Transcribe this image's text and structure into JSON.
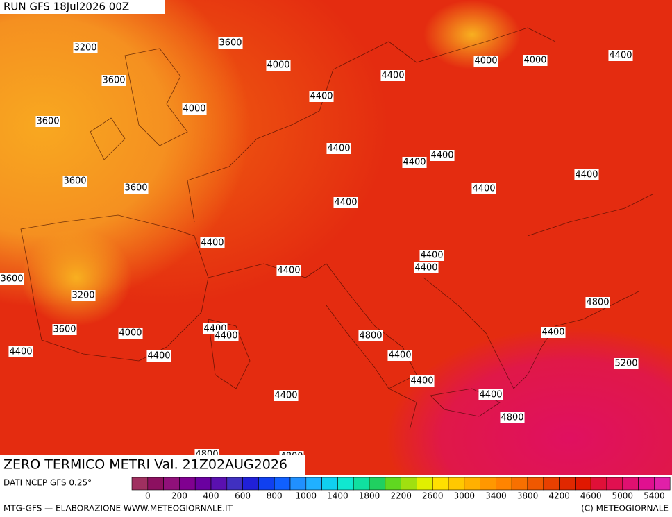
{
  "header": {
    "run": "RUN GFS 18Jul2026 00Z"
  },
  "title": "ZERO TERMICO METRI Val. 21Z02AUG2026",
  "source": "DATI NCEP GFS 0.25°",
  "footer": {
    "left": "MTG-GFS — ELABORAZIONE WWW.METEOGIORNALE.IT",
    "right": "(C) METEOGIORNALE"
  },
  "colorbar": {
    "colors": [
      "#a03060",
      "#8c1060",
      "#90107a",
      "#800090",
      "#6a00a0",
      "#5a10b0",
      "#4030c0",
      "#2020d8",
      "#1040f0",
      "#1060ff",
      "#2090ff",
      "#20b0ff",
      "#10d0f0",
      "#10e8d0",
      "#10e0a0",
      "#20d060",
      "#60d820",
      "#a0e010",
      "#e0f000",
      "#ffe000",
      "#ffc800",
      "#ffb000",
      "#ff9800",
      "#ff8400",
      "#f87000",
      "#f05800",
      "#e84000",
      "#e02800",
      "#e01800",
      "#e01038",
      "#e01050",
      "#e01070",
      "#e01090",
      "#e020a8"
    ],
    "ticks": [
      0,
      200,
      400,
      600,
      800,
      1000,
      1400,
      1800,
      2200,
      2600,
      3000,
      3400,
      3800,
      4200,
      4600,
      5000,
      5400
    ]
  },
  "contour_labels": [
    3200,
    3600,
    4000,
    3600,
    4400,
    4000,
    4000,
    4400,
    4400,
    4000,
    3600,
    4400,
    4400,
    4400,
    4400,
    3600,
    3600,
    4400,
    4400,
    4400,
    4400,
    4400,
    4400,
    3600,
    3200,
    4800,
    3600,
    4000,
    4400,
    4400,
    4800,
    4400,
    4400,
    4400,
    4400,
    5200,
    4400,
    4400,
    4400,
    4800,
    4800,
    4800
  ]
}
